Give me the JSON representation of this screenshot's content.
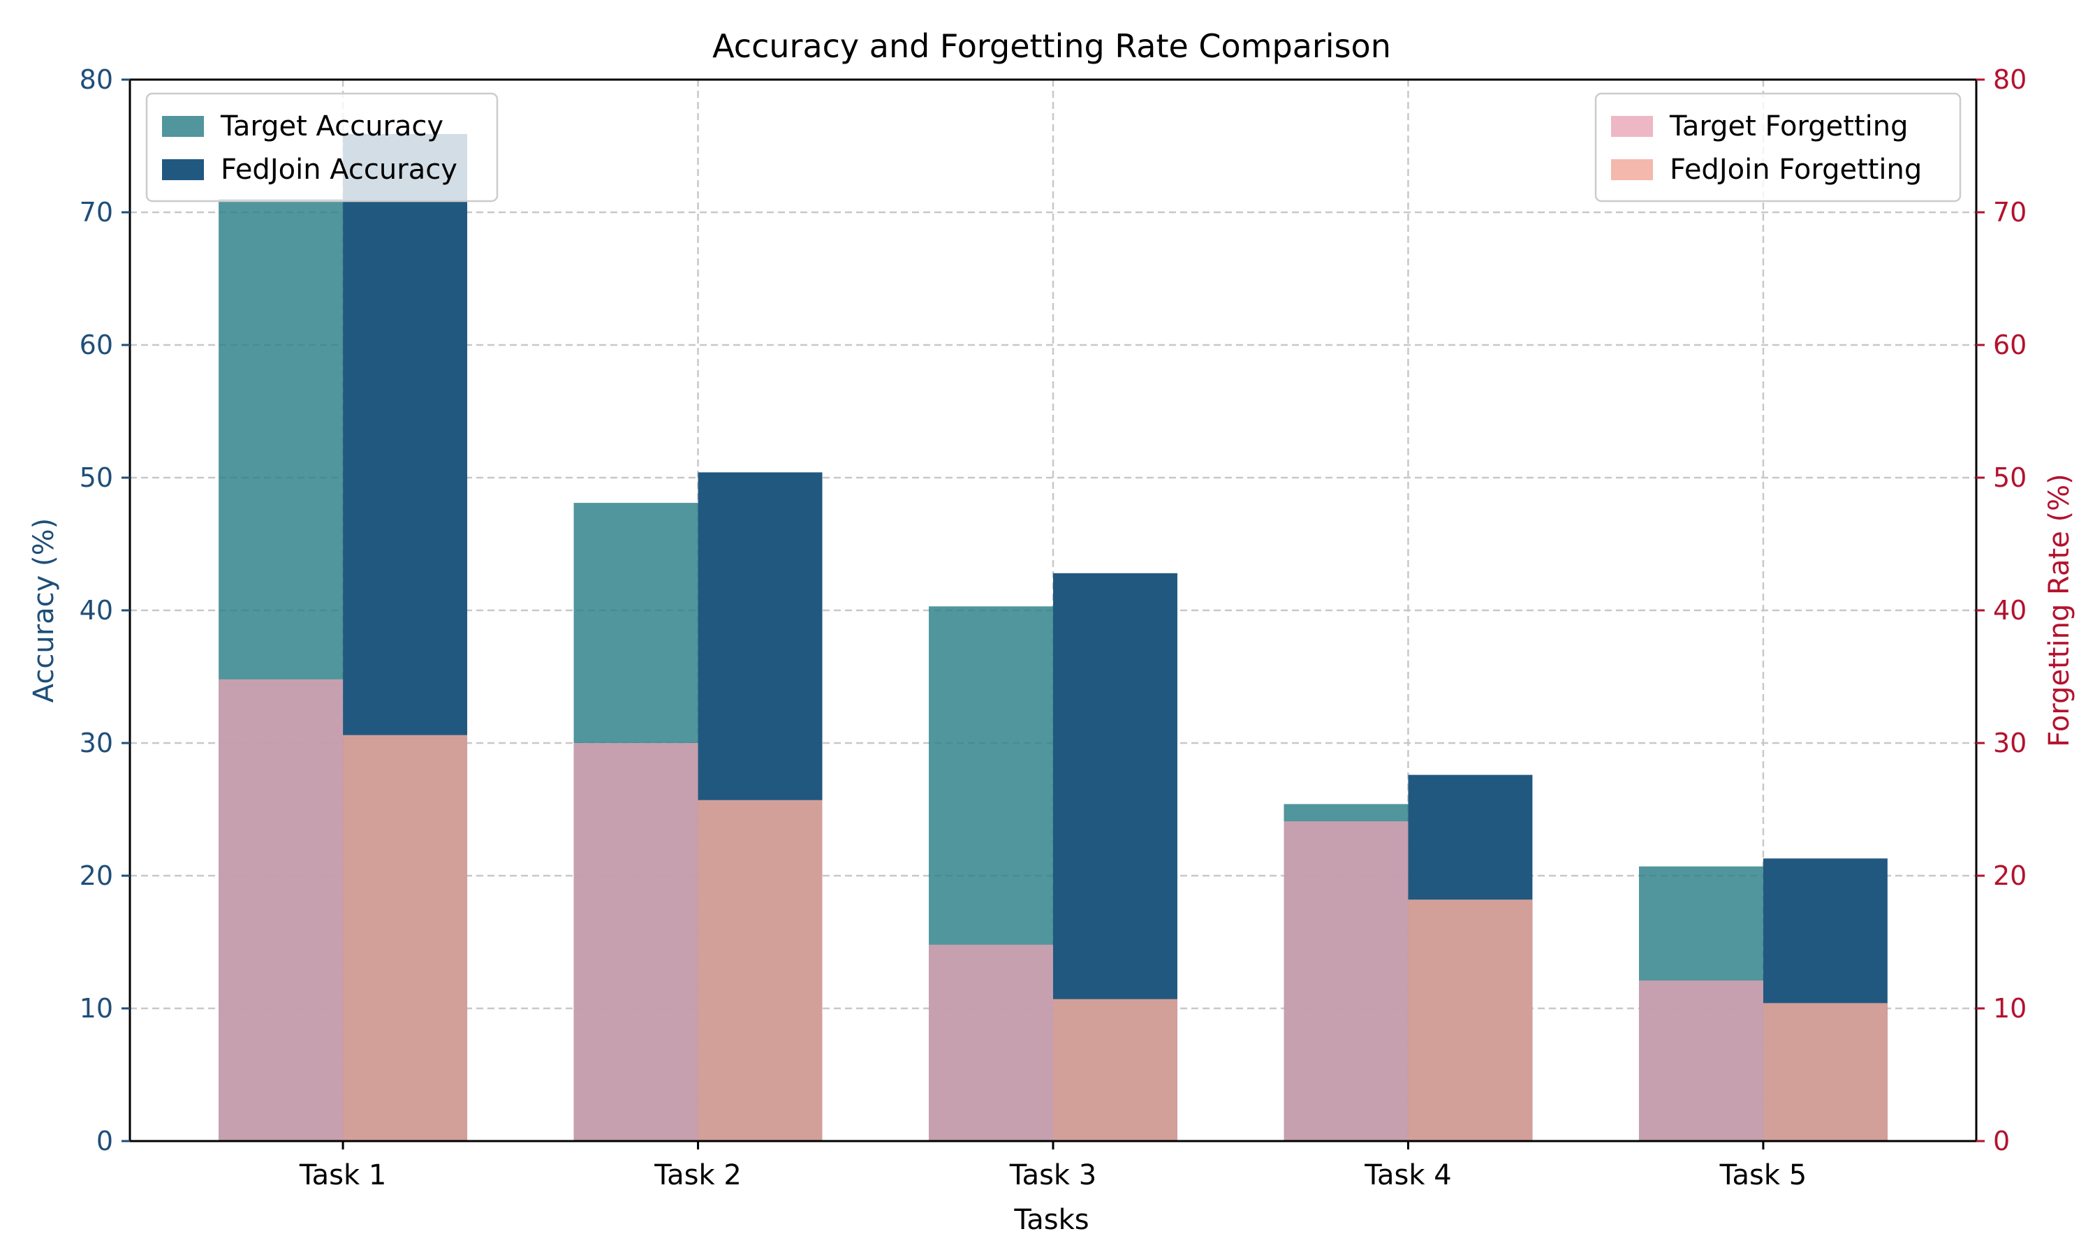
{
  "chart_data": {
    "type": "bar",
    "title": "Accuracy and Forgetting Rate Comparison",
    "xlabel": "Tasks",
    "ylabel_left": "Accuracy (%)",
    "ylabel_right": "Forgetting Rate (%)",
    "categories": [
      "Task 1",
      "Task 2",
      "Task 3",
      "Task 4",
      "Task 5"
    ],
    "ylim_left": [
      0,
      80
    ],
    "ylim_right": [
      0,
      80
    ],
    "yticks": [
      "0",
      "10",
      "20",
      "30",
      "40",
      "50",
      "60",
      "70",
      "80"
    ],
    "grid": true,
    "series": [
      {
        "name": "Target Accuracy",
        "axis": "left",
        "values": [
          71.0,
          48.1,
          40.3,
          25.4,
          20.7
        ],
        "color": "#2a7f86",
        "opacity": 0.82,
        "slot": 0
      },
      {
        "name": "FedJoin Accuracy",
        "axis": "left",
        "values": [
          75.9,
          50.4,
          42.8,
          27.6,
          21.3
        ],
        "color": "#21587f",
        "opacity": 1.0,
        "slot": 1
      },
      {
        "name": "Target Forgetting",
        "axis": "right",
        "values": [
          34.8,
          30.0,
          14.8,
          24.1,
          12.1
        ],
        "color": "#e8a3b5",
        "opacity": 0.78,
        "slot": 0
      },
      {
        "name": "FedJoin Forgetting",
        "axis": "right",
        "values": [
          30.6,
          25.7,
          10.7,
          18.2,
          10.4
        ],
        "color": "#f2ab9d",
        "opacity": 0.85,
        "slot": 1
      }
    ],
    "legends": {
      "left": [
        "Target Accuracy",
        "FedJoin Accuracy"
      ],
      "right": [
        "Target Forgetting",
        "FedJoin Forgetting"
      ],
      "left_placement": "upper left",
      "right_placement": "upper right"
    },
    "colors": {
      "left_axis": "#1f4e79",
      "right_axis": "#b3122e",
      "grid": "#c8c8c8"
    }
  }
}
